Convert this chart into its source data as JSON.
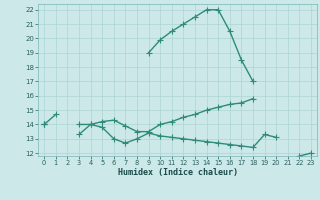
{
  "x": [
    0,
    1,
    2,
    3,
    4,
    5,
    6,
    7,
    8,
    9,
    10,
    11,
    12,
    13,
    14,
    15,
    16,
    17,
    18,
    19,
    20,
    21,
    22,
    23
  ],
  "line1": [
    14.0,
    14.7,
    null,
    null,
    null,
    null,
    null,
    null,
    null,
    19.0,
    19.9,
    20.5,
    21.0,
    21.5,
    22.0,
    22.0,
    20.5,
    18.5,
    17.0,
    null,
    null,
    null,
    null,
    null
  ],
  "line2": [
    14.0,
    null,
    null,
    14.0,
    14.0,
    14.2,
    14.3,
    13.9,
    13.5,
    13.5,
    14.0,
    14.2,
    14.5,
    14.7,
    15.0,
    15.2,
    15.4,
    15.5,
    15.8,
    null,
    null,
    null,
    null,
    null
  ],
  "line3": [
    14.0,
    null,
    null,
    13.3,
    14.0,
    13.8,
    13.0,
    12.7,
    13.0,
    13.4,
    13.2,
    13.1,
    13.0,
    12.9,
    12.8,
    12.7,
    12.6,
    12.5,
    12.4,
    13.3,
    13.1,
    null,
    11.8,
    12.0
  ],
  "color": "#2e8b7a",
  "bg_color": "#cce8e8",
  "grid_color": "#add4d4",
  "xlabel": "Humidex (Indice chaleur)",
  "ylim": [
    11.8,
    22.4
  ],
  "xlim": [
    -0.5,
    23.5
  ],
  "yticks": [
    12,
    13,
    14,
    15,
    16,
    17,
    18,
    19,
    20,
    21,
    22
  ],
  "xticks": [
    0,
    1,
    2,
    3,
    4,
    5,
    6,
    7,
    8,
    9,
    10,
    11,
    12,
    13,
    14,
    15,
    16,
    17,
    18,
    19,
    20,
    21,
    22,
    23
  ],
  "markersize": 2.5,
  "linewidth": 1.0
}
